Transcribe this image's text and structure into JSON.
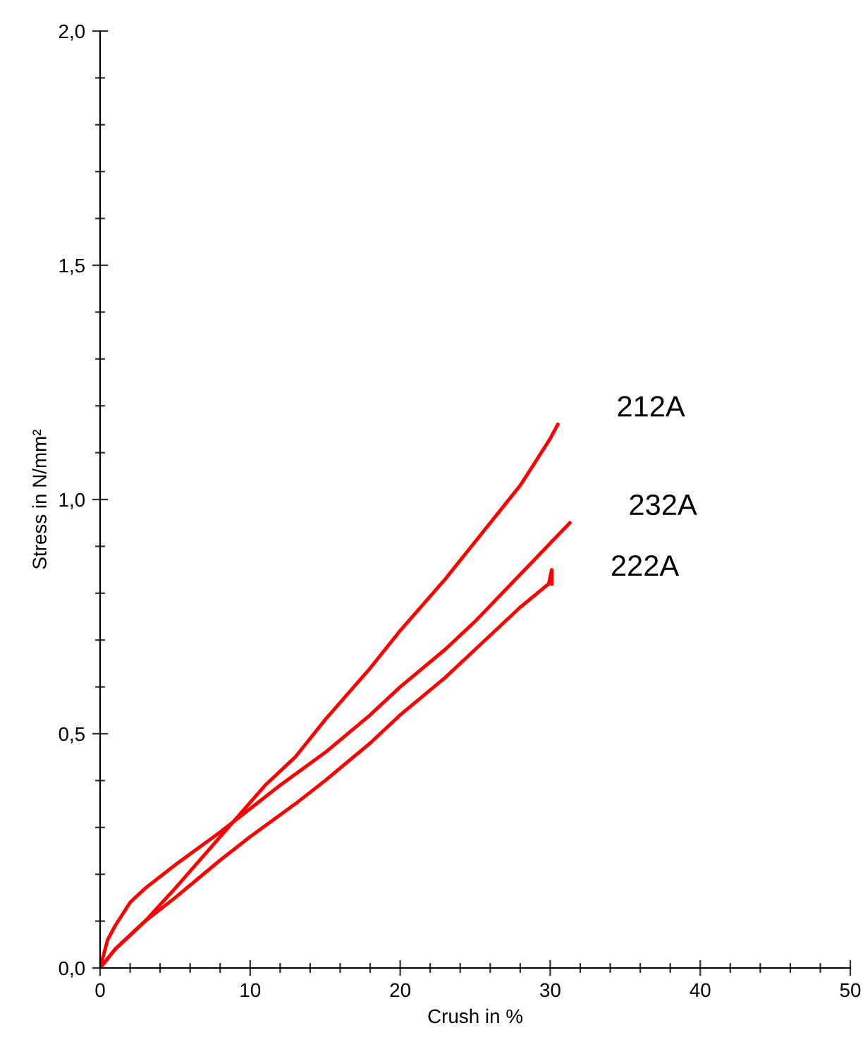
{
  "chart_data": {
    "type": "line",
    "xlabel": "Crush in %",
    "ylabel": "Stress in N/mm²",
    "xlim": [
      0,
      50
    ],
    "ylim": [
      0,
      2.0
    ],
    "xticks": [
      0,
      {
        "value": 2,
        "label": null
      },
      {
        "value": 4,
        "label": null
      },
      {
        "value": 6,
        "label": null
      },
      {
        "value": 8,
        "label": null
      },
      10,
      {
        "value": 12,
        "label": null
      },
      {
        "value": 14,
        "label": null
      },
      {
        "value": 16,
        "label": null
      },
      {
        "value": 18,
        "label": null
      },
      20,
      {
        "value": 22,
        "label": null
      },
      {
        "value": 24,
        "label": null
      },
      {
        "value": 26,
        "label": null
      },
      {
        "value": 28,
        "label": null
      },
      30,
      {
        "value": 32,
        "label": null
      },
      {
        "value": 34,
        "label": null
      },
      {
        "value": 36,
        "label": null
      },
      {
        "value": 38,
        "label": null
      },
      40,
      {
        "value": 42,
        "label": null
      },
      {
        "value": 44,
        "label": null
      },
      {
        "value": 46,
        "label": null
      },
      {
        "value": 48,
        "label": null
      },
      50
    ],
    "yticks": [
      {
        "value": 0,
        "label": "0,0"
      },
      {
        "value": 0.1,
        "label": null
      },
      {
        "value": 0.2,
        "label": null
      },
      {
        "value": 0.3,
        "label": null
      },
      {
        "value": 0.4,
        "label": null
      },
      {
        "value": 0.5,
        "label": "0,5"
      },
      {
        "value": 0.6,
        "label": null
      },
      {
        "value": 0.7,
        "label": null
      },
      {
        "value": 0.8,
        "label": null
      },
      {
        "value": 0.9,
        "label": null
      },
      {
        "value": 1.0,
        "label": "1,0"
      },
      {
        "value": 1.1,
        "label": null
      },
      {
        "value": 1.2,
        "label": null
      },
      {
        "value": 1.3,
        "label": null
      },
      {
        "value": 1.4,
        "label": null
      },
      {
        "value": 1.5,
        "label": "1,5"
      },
      {
        "value": 1.6,
        "label": null
      },
      {
        "value": 1.7,
        "label": null
      },
      {
        "value": 1.8,
        "label": null
      },
      {
        "value": 1.9,
        "label": null
      },
      {
        "value": 2.0,
        "label": "2,0"
      }
    ],
    "grid": false,
    "legend": false,
    "marker": "none",
    "line_style": "solid",
    "series": [
      {
        "name": "212A",
        "color": "#ff0000",
        "x": [
          0,
          1,
          3,
          5,
          8,
          11,
          13,
          15,
          18,
          20,
          23,
          25,
          28,
          30,
          30.5
        ],
        "values": [
          0,
          0.04,
          0.1,
          0.17,
          0.28,
          0.39,
          0.45,
          0.53,
          0.64,
          0.72,
          0.83,
          0.91,
          1.03,
          1.13,
          1.16
        ]
      },
      {
        "name": "232A",
        "color": "#ff0000",
        "x": [
          0,
          0.5,
          1,
          2,
          3,
          5,
          8,
          10,
          12,
          15,
          18,
          20,
          23,
          25,
          28,
          31.3
        ],
        "values": [
          0,
          0.06,
          0.09,
          0.14,
          0.17,
          0.22,
          0.29,
          0.34,
          0.39,
          0.46,
          0.54,
          0.6,
          0.68,
          0.74,
          0.84,
          0.95
        ]
      },
      {
        "name": "222A",
        "color": "#ff0000",
        "x": [
          0,
          1,
          3,
          5,
          8,
          10,
          13,
          15,
          18,
          20,
          23,
          25,
          28,
          29.9,
          30.1,
          30.1
        ],
        "values": [
          0,
          0.04,
          0.1,
          0.15,
          0.23,
          0.28,
          0.35,
          0.4,
          0.48,
          0.54,
          0.62,
          0.68,
          0.77,
          0.82,
          0.85,
          0.82
        ]
      }
    ]
  }
}
